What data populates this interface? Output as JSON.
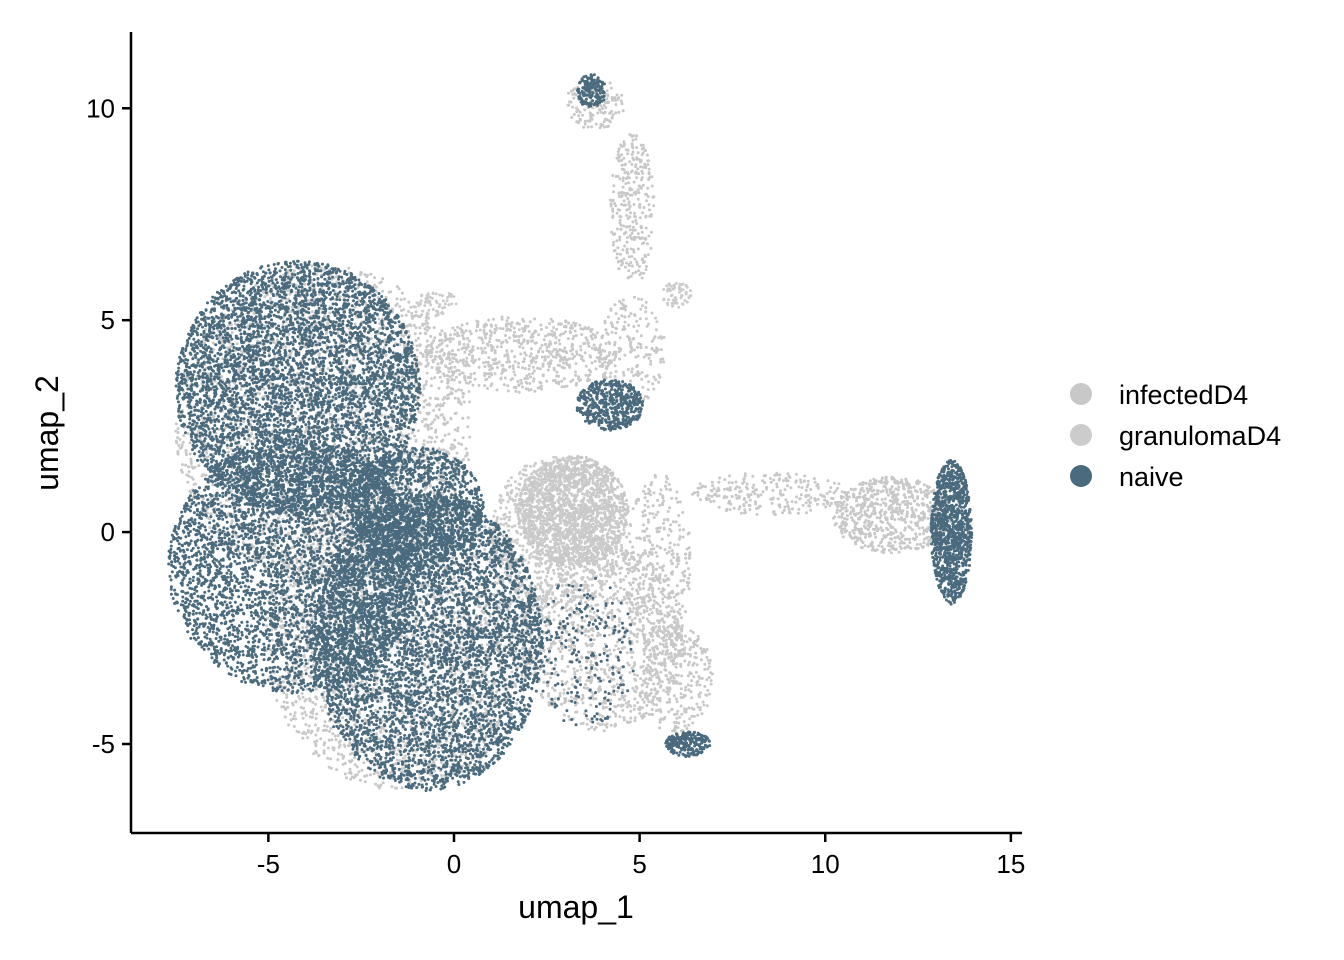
{
  "chart_data": {
    "type": "scatter",
    "title": "",
    "xlabel": "umap_1",
    "ylabel": "umap_2",
    "xlim": [
      -8.7,
      15.3
    ],
    "ylim": [
      -7.1,
      11.8
    ],
    "x_ticks": [
      -5,
      0,
      5,
      10,
      15
    ],
    "x_tick_labels": [
      "-5",
      "0",
      "5",
      "10",
      "15"
    ],
    "y_ticks": [
      -5,
      0,
      5,
      10
    ],
    "y_tick_labels": [
      "-5",
      "0",
      "5",
      "10"
    ],
    "grid": false,
    "legend_position": "right",
    "series": [
      {
        "name": "infectedD4",
        "color": "#c8c8c8",
        "regions": [
          {
            "cx": -3.5,
            "cy": 2.5,
            "rx": 4.0,
            "ry": 3.8,
            "n": 2600
          },
          {
            "cx": -1.5,
            "cy": -2.5,
            "rx": 3.6,
            "ry": 3.6,
            "n": 2600
          },
          {
            "cx": 3.2,
            "cy": 0.5,
            "rx": 1.5,
            "ry": 1.3,
            "n": 1400
          },
          {
            "cx": 4.0,
            "cy": -2.5,
            "rx": 2.2,
            "ry": 2.2,
            "n": 1000
          },
          {
            "cx": 1.8,
            "cy": 4.2,
            "rx": 2.6,
            "ry": 0.9,
            "n": 650
          },
          {
            "cx": 4.8,
            "cy": 7.6,
            "rx": 0.6,
            "ry": 1.8,
            "n": 300
          },
          {
            "cx": 3.8,
            "cy": 10.1,
            "rx": 0.8,
            "ry": 0.6,
            "n": 150
          },
          {
            "cx": 8.5,
            "cy": 0.9,
            "rx": 2.2,
            "ry": 0.5,
            "n": 250
          },
          {
            "cx": 11.8,
            "cy": 0.4,
            "rx": 1.6,
            "ry": 0.9,
            "n": 700
          },
          {
            "cx": 5.5,
            "cy": -0.8,
            "rx": 0.9,
            "ry": 2.2,
            "n": 350
          },
          {
            "cx": 6.0,
            "cy": -3.5,
            "rx": 1.0,
            "ry": 1.3,
            "n": 300
          },
          {
            "cx": 4.8,
            "cy": 4.3,
            "rx": 0.9,
            "ry": 1.3,
            "n": 200
          }
        ]
      },
      {
        "name": "granulomaD4",
        "color": "#cccccc",
        "regions": [
          {
            "cx": 2.8,
            "cy": 0.0,
            "rx": 1.8,
            "ry": 1.8,
            "n": 900
          },
          {
            "cx": -0.5,
            "cy": 5.4,
            "rx": 0.6,
            "ry": 0.3,
            "n": 60
          },
          {
            "cx": 6.0,
            "cy": 5.6,
            "rx": 0.4,
            "ry": 0.3,
            "n": 60
          }
        ]
      },
      {
        "name": "naive",
        "color": "#4a6a7e",
        "regions": [
          {
            "cx": -4.2,
            "cy": 3.4,
            "rx": 3.3,
            "ry": 3.0,
            "n": 5200
          },
          {
            "cx": -4.3,
            "cy": -0.8,
            "rx": 3.4,
            "ry": 3.0,
            "n": 4200
          },
          {
            "cx": -0.7,
            "cy": -2.6,
            "rx": 3.1,
            "ry": 3.5,
            "n": 5200
          },
          {
            "cx": -1.0,
            "cy": 0.6,
            "rx": 1.8,
            "ry": 1.4,
            "n": 1400
          },
          {
            "cx": 4.2,
            "cy": 3.0,
            "rx": 0.9,
            "ry": 0.6,
            "n": 500
          },
          {
            "cx": 6.3,
            "cy": -5.0,
            "rx": 0.6,
            "ry": 0.3,
            "n": 220
          },
          {
            "cx": 13.4,
            "cy": 0.0,
            "rx": 0.55,
            "ry": 1.7,
            "n": 1100
          },
          {
            "cx": 3.7,
            "cy": 10.4,
            "rx": 0.4,
            "ry": 0.4,
            "n": 170
          },
          {
            "cx": 3.5,
            "cy": -2.8,
            "rx": 1.4,
            "ry": 1.8,
            "n": 220
          }
        ]
      }
    ]
  },
  "legend": [
    {
      "label": "infectedD4",
      "color": "#c8c8c8"
    },
    {
      "label": "granulomaD4",
      "color": "#cccccc"
    },
    {
      "label": "naive",
      "color": "#4a6a7e"
    }
  ]
}
